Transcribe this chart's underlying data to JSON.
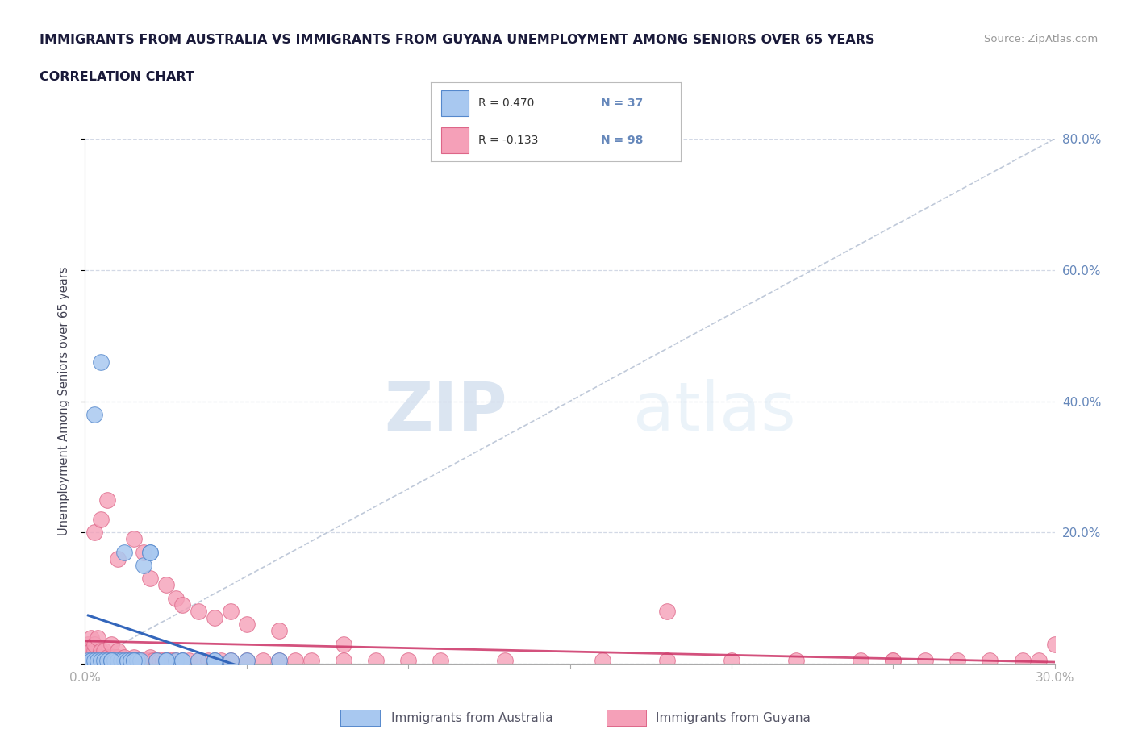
{
  "title_line1": "IMMIGRANTS FROM AUSTRALIA VS IMMIGRANTS FROM GUYANA UNEMPLOYMENT AMONG SENIORS OVER 65 YEARS",
  "title_line2": "CORRELATION CHART",
  "source_text": "Source: ZipAtlas.com",
  "ylabel": "Unemployment Among Seniors over 65 years",
  "xlim": [
    0.0,
    0.3
  ],
  "ylim": [
    0.0,
    0.8
  ],
  "australia_color": "#a8c8f0",
  "australia_edge_color": "#5588cc",
  "australia_line_color": "#3366bb",
  "guyana_color": "#f5a0b8",
  "guyana_edge_color": "#dd6688",
  "guyana_line_color": "#cc3366",
  "diag_line_color": "#b0bcd0",
  "legend_R_australia": "R = 0.470",
  "legend_N_australia": "N = 37",
  "legend_R_guyana": "R = -0.133",
  "legend_N_guyana": "N = 98",
  "australia_x": [
    0.001,
    0.002,
    0.003,
    0.004,
    0.005,
    0.006,
    0.007,
    0.008,
    0.009,
    0.01,
    0.011,
    0.012,
    0.013,
    0.014,
    0.015,
    0.016,
    0.017,
    0.018,
    0.02,
    0.022,
    0.025,
    0.028,
    0.03,
    0.035,
    0.04,
    0.045,
    0.05,
    0.003,
    0.005,
    0.008,
    0.012,
    0.015,
    0.02,
    0.025,
    0.03,
    0.04,
    0.06
  ],
  "australia_y": [
    0.005,
    0.005,
    0.005,
    0.005,
    0.005,
    0.005,
    0.005,
    0.005,
    0.005,
    0.005,
    0.005,
    0.005,
    0.005,
    0.005,
    0.005,
    0.005,
    0.005,
    0.15,
    0.17,
    0.005,
    0.005,
    0.005,
    0.005,
    0.005,
    0.005,
    0.005,
    0.005,
    0.38,
    0.46,
    0.005,
    0.17,
    0.005,
    0.17,
    0.005,
    0.005,
    0.005,
    0.005
  ],
  "guyana_x": [
    0.001,
    0.001,
    0.001,
    0.001,
    0.002,
    0.002,
    0.002,
    0.002,
    0.003,
    0.003,
    0.003,
    0.003,
    0.004,
    0.004,
    0.004,
    0.005,
    0.005,
    0.005,
    0.006,
    0.006,
    0.007,
    0.007,
    0.008,
    0.008,
    0.008,
    0.009,
    0.009,
    0.01,
    0.01,
    0.01,
    0.011,
    0.012,
    0.012,
    0.013,
    0.014,
    0.015,
    0.015,
    0.016,
    0.017,
    0.018,
    0.019,
    0.02,
    0.02,
    0.021,
    0.022,
    0.023,
    0.024,
    0.025,
    0.026,
    0.027,
    0.028,
    0.03,
    0.032,
    0.035,
    0.038,
    0.04,
    0.042,
    0.045,
    0.05,
    0.055,
    0.06,
    0.065,
    0.07,
    0.08,
    0.09,
    0.1,
    0.11,
    0.13,
    0.16,
    0.18,
    0.2,
    0.22,
    0.24,
    0.25,
    0.26,
    0.27,
    0.28,
    0.29,
    0.295,
    0.3,
    0.003,
    0.005,
    0.007,
    0.01,
    0.015,
    0.018,
    0.02,
    0.025,
    0.028,
    0.03,
    0.035,
    0.04,
    0.045,
    0.05,
    0.06,
    0.08,
    0.18,
    0.25
  ],
  "guyana_y": [
    0.005,
    0.01,
    0.02,
    0.03,
    0.005,
    0.01,
    0.02,
    0.04,
    0.005,
    0.01,
    0.02,
    0.03,
    0.005,
    0.01,
    0.04,
    0.005,
    0.01,
    0.02,
    0.005,
    0.02,
    0.005,
    0.01,
    0.005,
    0.01,
    0.03,
    0.005,
    0.01,
    0.005,
    0.01,
    0.02,
    0.005,
    0.005,
    0.01,
    0.005,
    0.005,
    0.005,
    0.01,
    0.005,
    0.005,
    0.005,
    0.005,
    0.005,
    0.01,
    0.005,
    0.005,
    0.005,
    0.005,
    0.005,
    0.005,
    0.005,
    0.005,
    0.005,
    0.005,
    0.005,
    0.005,
    0.005,
    0.005,
    0.005,
    0.005,
    0.005,
    0.005,
    0.005,
    0.005,
    0.005,
    0.005,
    0.005,
    0.005,
    0.005,
    0.005,
    0.005,
    0.005,
    0.005,
    0.005,
    0.005,
    0.005,
    0.005,
    0.005,
    0.005,
    0.005,
    0.03,
    0.2,
    0.22,
    0.25,
    0.16,
    0.19,
    0.17,
    0.13,
    0.12,
    0.1,
    0.09,
    0.08,
    0.07,
    0.08,
    0.06,
    0.05,
    0.03,
    0.08,
    0.005
  ],
  "watermark_zip": "ZIP",
  "watermark_atlas": "atlas",
  "background_color": "#ffffff",
  "grid_color": "#c8d0e0",
  "title_color": "#1a1a3a",
  "axis_label_color": "#444455",
  "tick_color": "#6688bb"
}
